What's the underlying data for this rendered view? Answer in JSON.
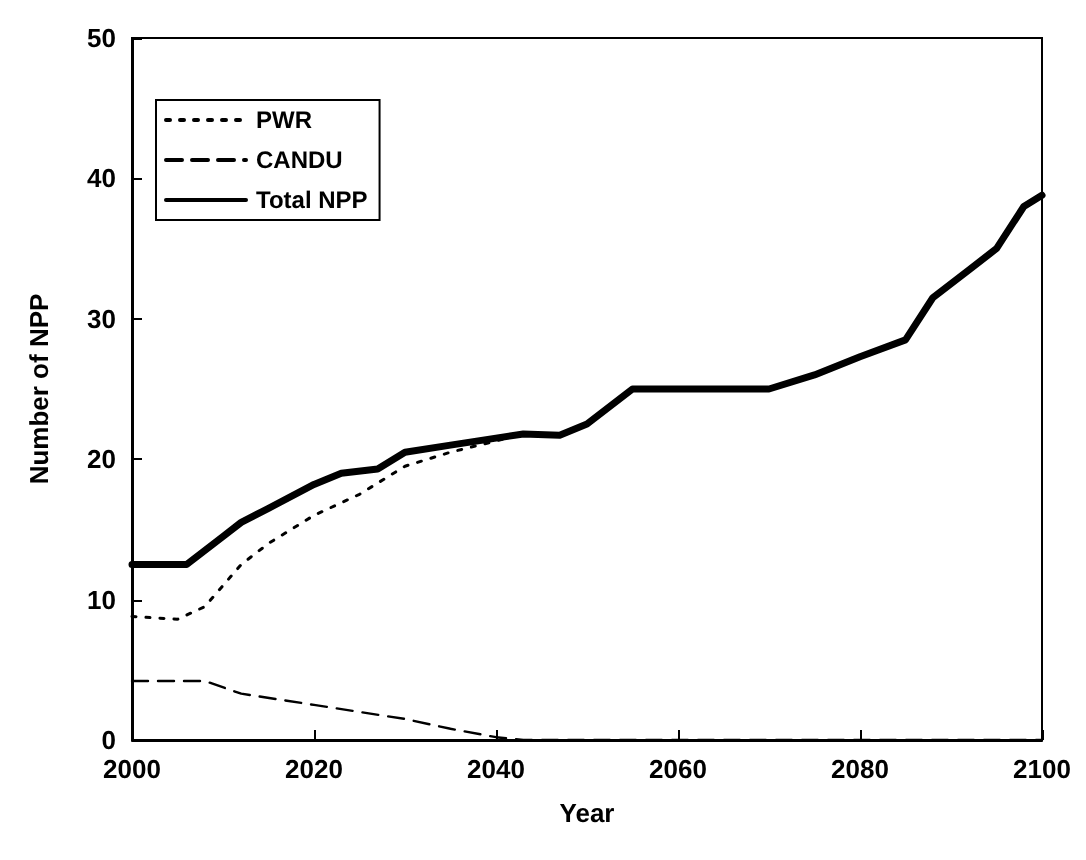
{
  "chart_data": {
    "type": "line",
    "xlabel": "Year",
    "ylabel": "Number of NPP",
    "xlim": [
      2000,
      2100
    ],
    "xticks": [
      2000,
      2020,
      2040,
      2060,
      2080,
      2100
    ],
    "ylim": [
      0,
      50
    ],
    "yticks": [
      0,
      10,
      20,
      30,
      40,
      50
    ],
    "legend": "top left",
    "grid": false,
    "marker": "none",
    "series": [
      {
        "name": "PWR",
        "color": "#000000",
        "line_style": "dotted",
        "x": [
          2000,
          2005,
          2008,
          2012,
          2015,
          2020,
          2025,
          2030,
          2035,
          2040,
          2043,
          2047,
          2050,
          2055,
          2060,
          2070,
          2075,
          2080,
          2085,
          2088,
          2092,
          2095,
          2098,
          2100
        ],
        "values": [
          8.8,
          8.6,
          9.5,
          12.5,
          14,
          16,
          17.5,
          19.5,
          20.5,
          21.3,
          21.8,
          21.7,
          22.5,
          25,
          25,
          25,
          26,
          27.3,
          28.5,
          31.5,
          33.5,
          35,
          38,
          38.8
        ]
      },
      {
        "name": "CANDU",
        "color": "#000000",
        "line_style": "dashed",
        "x": [
          2000,
          2008,
          2012,
          2020,
          2030,
          2035,
          2040,
          2043,
          2100
        ],
        "values": [
          4.2,
          4.2,
          3.3,
          2.5,
          1.5,
          0.8,
          0.2,
          0,
          0
        ]
      },
      {
        "name": "Total NPP",
        "color": "#000000",
        "line_style": "solid",
        "x": [
          2000,
          2006,
          2010,
          2012,
          2015,
          2020,
          2023,
          2027,
          2030,
          2035,
          2040,
          2043,
          2047,
          2050,
          2055,
          2060,
          2070,
          2075,
          2080,
          2085,
          2088,
          2092,
          2095,
          2098,
          2100
        ],
        "values": [
          12.5,
          12.5,
          14.5,
          15.5,
          16.5,
          18.2,
          19,
          19.3,
          20.5,
          21,
          21.5,
          21.8,
          21.7,
          22.5,
          25,
          25,
          25,
          26,
          27.3,
          28.5,
          31.5,
          33.5,
          35,
          38,
          38.8
        ]
      }
    ]
  }
}
